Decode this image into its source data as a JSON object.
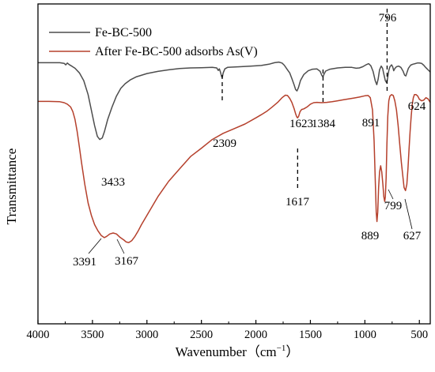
{
  "chart_data": {
    "type": "line",
    "title": "",
    "xlabel": "Wavenumber（cm",
    "xlabel_sup": "−1",
    "xlabel_close": "）",
    "ylabel": "Transmittance",
    "x_reversed": true,
    "xlim": [
      4000,
      400
    ],
    "ylim": [
      0,
      1
    ],
    "x_ticks": [
      4000,
      3500,
      3000,
      2500,
      2000,
      1500,
      1000,
      500
    ],
    "y_ticks_shown": false,
    "grid": false,
    "legend_position": "top-left",
    "series": [
      {
        "name": "Fe-BC-500",
        "color": "#4d4d4d",
        "points": [
          [
            4000,
            0.823
          ],
          [
            3800,
            0.823
          ],
          [
            3760,
            0.821
          ],
          [
            3745,
            0.816
          ],
          [
            3730,
            0.822
          ],
          [
            3715,
            0.817
          ],
          [
            3690,
            0.812
          ],
          [
            3660,
            0.805
          ],
          [
            3620,
            0.79
          ],
          [
            3580,
            0.765
          ],
          [
            3540,
            0.72
          ],
          [
            3510,
            0.67
          ],
          [
            3480,
            0.62
          ],
          [
            3455,
            0.585
          ],
          [
            3433,
            0.575
          ],
          [
            3410,
            0.58
          ],
          [
            3390,
            0.6
          ],
          [
            3360,
            0.64
          ],
          [
            3320,
            0.68
          ],
          [
            3280,
            0.715
          ],
          [
            3240,
            0.74
          ],
          [
            3200,
            0.755
          ],
          [
            3150,
            0.768
          ],
          [
            3100,
            0.777
          ],
          [
            3000,
            0.788
          ],
          [
            2900,
            0.795
          ],
          [
            2800,
            0.8
          ],
          [
            2700,
            0.804
          ],
          [
            2600,
            0.806
          ],
          [
            2500,
            0.807
          ],
          [
            2400,
            0.808
          ],
          [
            2360,
            0.806
          ],
          [
            2345,
            0.798
          ],
          [
            2335,
            0.803
          ],
          [
            2325,
            0.792
          ],
          [
            2315,
            0.778
          ],
          [
            2309,
            0.775
          ],
          [
            2300,
            0.79
          ],
          [
            2285,
            0.803
          ],
          [
            2260,
            0.808
          ],
          [
            2150,
            0.81
          ],
          [
            2050,
            0.812
          ],
          [
            1950,
            0.814
          ],
          [
            1880,
            0.818
          ],
          [
            1830,
            0.823
          ],
          [
            1790,
            0.825
          ],
          [
            1760,
            0.822
          ],
          [
            1740,
            0.815
          ],
          [
            1710,
            0.8
          ],
          [
            1690,
            0.79
          ],
          [
            1670,
            0.772
          ],
          [
            1650,
            0.752
          ],
          [
            1635,
            0.736
          ],
          [
            1623,
            0.732
          ],
          [
            1610,
            0.742
          ],
          [
            1590,
            0.766
          ],
          [
            1560,
            0.785
          ],
          [
            1520,
            0.797
          ],
          [
            1480,
            0.802
          ],
          [
            1440,
            0.803
          ],
          [
            1410,
            0.795
          ],
          [
            1395,
            0.782
          ],
          [
            1384,
            0.777
          ],
          [
            1375,
            0.786
          ],
          [
            1360,
            0.796
          ],
          [
            1320,
            0.802
          ],
          [
            1250,
            0.806
          ],
          [
            1180,
            0.808
          ],
          [
            1120,
            0.808
          ],
          [
            1080,
            0.805
          ],
          [
            1050,
            0.806
          ],
          [
            1020,
            0.81
          ],
          [
            990,
            0.816
          ],
          [
            965,
            0.82
          ],
          [
            945,
            0.813
          ],
          [
            925,
            0.795
          ],
          [
            905,
            0.765
          ],
          [
            891,
            0.752
          ],
          [
            878,
            0.77
          ],
          [
            865,
            0.8
          ],
          [
            850,
            0.812
          ],
          [
            838,
            0.805
          ],
          [
            825,
            0.785
          ],
          [
            812,
            0.765
          ],
          [
            800,
            0.758
          ],
          [
            792,
            0.772
          ],
          [
            780,
            0.798
          ],
          [
            770,
            0.81
          ],
          [
            755,
            0.816
          ],
          [
            745,
            0.81
          ],
          [
            735,
            0.797
          ],
          [
            725,
            0.804
          ],
          [
            710,
            0.81
          ],
          [
            690,
            0.812
          ],
          [
            670,
            0.808
          ],
          [
            650,
            0.796
          ],
          [
            635,
            0.783
          ],
          [
            624,
            0.78
          ],
          [
            615,
            0.79
          ],
          [
            600,
            0.805
          ],
          [
            580,
            0.815
          ],
          [
            560,
            0.818
          ],
          [
            540,
            0.82
          ],
          [
            520,
            0.822
          ],
          [
            500,
            0.822
          ],
          [
            480,
            0.821
          ],
          [
            460,
            0.815
          ],
          [
            440,
            0.807
          ],
          [
            420,
            0.8
          ],
          [
            400,
            0.793
          ]
        ]
      },
      {
        "name": "After Fe-BC-500 adsorbs As(V)",
        "color": "#b5402c",
        "points": [
          [
            4000,
            0.698
          ],
          [
            3900,
            0.698
          ],
          [
            3800,
            0.697
          ],
          [
            3760,
            0.694
          ],
          [
            3730,
            0.689
          ],
          [
            3700,
            0.68
          ],
          [
            3680,
            0.665
          ],
          [
            3660,
            0.64
          ],
          [
            3640,
            0.6
          ],
          [
            3620,
            0.55
          ],
          [
            3600,
            0.5
          ],
          [
            3570,
            0.43
          ],
          [
            3540,
            0.37
          ],
          [
            3510,
            0.33
          ],
          [
            3480,
            0.3
          ],
          [
            3450,
            0.28
          ],
          [
            3420,
            0.265
          ],
          [
            3391,
            0.258
          ],
          [
            3370,
            0.262
          ],
          [
            3340,
            0.27
          ],
          [
            3310,
            0.273
          ],
          [
            3280,
            0.27
          ],
          [
            3250,
            0.26
          ],
          [
            3210,
            0.25
          ],
          [
            3190,
            0.244
          ],
          [
            3167,
            0.242
          ],
          [
            3140,
            0.248
          ],
          [
            3110,
            0.262
          ],
          [
            3080,
            0.28
          ],
          [
            3050,
            0.3
          ],
          [
            3000,
            0.33
          ],
          [
            2950,
            0.36
          ],
          [
            2900,
            0.39
          ],
          [
            2850,
            0.415
          ],
          [
            2800,
            0.44
          ],
          [
            2700,
            0.48
          ],
          [
            2600,
            0.52
          ],
          [
            2500,
            0.547
          ],
          [
            2400,
            0.575
          ],
          [
            2300,
            0.595
          ],
          [
            2200,
            0.61
          ],
          [
            2100,
            0.625
          ],
          [
            2000,
            0.645
          ],
          [
            1950,
            0.655
          ],
          [
            1900,
            0.666
          ],
          [
            1850,
            0.68
          ],
          [
            1800,
            0.695
          ],
          [
            1760,
            0.71
          ],
          [
            1730,
            0.718
          ],
          [
            1710,
            0.717
          ],
          [
            1690,
            0.708
          ],
          [
            1670,
            0.695
          ],
          [
            1650,
            0.675
          ],
          [
            1635,
            0.658
          ],
          [
            1625,
            0.648
          ],
          [
            1617,
            0.645
          ],
          [
            1608,
            0.65
          ],
          [
            1595,
            0.665
          ],
          [
            1580,
            0.672
          ],
          [
            1560,
            0.674
          ],
          [
            1530,
            0.68
          ],
          [
            1500,
            0.689
          ],
          [
            1470,
            0.694
          ],
          [
            1440,
            0.695
          ],
          [
            1400,
            0.694
          ],
          [
            1350,
            0.695
          ],
          [
            1300,
            0.697
          ],
          [
            1250,
            0.7
          ],
          [
            1200,
            0.703
          ],
          [
            1150,
            0.706
          ],
          [
            1100,
            0.709
          ],
          [
            1050,
            0.712
          ],
          [
            1000,
            0.716
          ],
          [
            970,
            0.717
          ],
          [
            950,
            0.71
          ],
          [
            930,
            0.67
          ],
          [
            915,
            0.57
          ],
          [
            905,
            0.45
          ],
          [
            896,
            0.34
          ],
          [
            889,
            0.31
          ],
          [
            882,
            0.34
          ],
          [
            874,
            0.42
          ],
          [
            865,
            0.47
          ],
          [
            855,
            0.49
          ],
          [
            845,
            0.47
          ],
          [
            835,
            0.43
          ],
          [
            826,
            0.39
          ],
          [
            818,
            0.375
          ],
          [
            812,
            0.39
          ],
          [
            805,
            0.45
          ],
          [
            798,
            0.56
          ],
          [
            790,
            0.65
          ],
          [
            780,
            0.7
          ],
          [
            770,
            0.715
          ],
          [
            755,
            0.72
          ],
          [
            740,
            0.717
          ],
          [
            725,
            0.7
          ],
          [
            710,
            0.67
          ],
          [
            695,
            0.62
          ],
          [
            680,
            0.56
          ],
          [
            665,
            0.5
          ],
          [
            650,
            0.45
          ],
          [
            640,
            0.42
          ],
          [
            627,
            0.41
          ],
          [
            615,
            0.43
          ],
          [
            605,
            0.48
          ],
          [
            595,
            0.54
          ],
          [
            585,
            0.6
          ],
          [
            575,
            0.65
          ],
          [
            565,
            0.69
          ],
          [
            555,
            0.71
          ],
          [
            545,
            0.72
          ],
          [
            530,
            0.72
          ],
          [
            515,
            0.715
          ],
          [
            500,
            0.705
          ],
          [
            480,
            0.7
          ],
          [
            460,
            0.702
          ],
          [
            440,
            0.71
          ],
          [
            420,
            0.706
          ],
          [
            400,
            0.695
          ]
        ]
      }
    ],
    "annotations": [
      {
        "text": "796",
        "series": 0,
        "x": 796,
        "dashed_marker": true
      },
      {
        "text": "2309",
        "series": 0,
        "x": 2309,
        "dashed_marker": true
      },
      {
        "text": "1384",
        "series": 0,
        "x": 1384,
        "dashed_marker": true
      },
      {
        "text": "1623",
        "series": 0,
        "x": 1623
      },
      {
        "text": "891",
        "series": 0,
        "x": 891
      },
      {
        "text": "624",
        "series": 0,
        "x": 624
      },
      {
        "text": "3433",
        "series": 0,
        "x": 3433
      },
      {
        "text": "1617",
        "series": 1,
        "x": 1617,
        "dashed_marker": true
      },
      {
        "text": "889",
        "series": 1,
        "x": 889
      },
      {
        "text": "799",
        "series": 1,
        "x": 799,
        "leader": true
      },
      {
        "text": "627",
        "series": 1,
        "x": 627,
        "leader": true
      },
      {
        "text": "3391",
        "series": 1,
        "x": 3391,
        "leader": true
      },
      {
        "text": "3167",
        "series": 1,
        "x": 3167,
        "leader": true
      }
    ]
  }
}
